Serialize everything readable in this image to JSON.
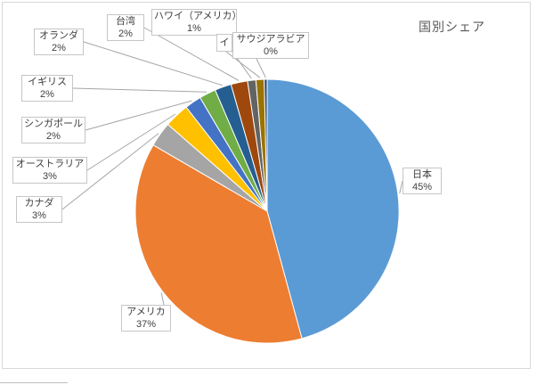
{
  "window": {
    "background": "#FFFFFF"
  },
  "chart": {
    "border_color": "#D9D9D9",
    "leader_line_color": "#A6A6A6",
    "label_border_color": "#C6C6C6",
    "label_text_color": "#404040",
    "title_color": "#595959"
  },
  "chart_data": {
    "type": "pie",
    "title": "国別シェア",
    "legend_position": "none",
    "labels_style": "callout-boxes-with-leader-lines",
    "slices": [
      {
        "label": "日本",
        "value": 45,
        "percent_label": "45%",
        "color": "#5B9BD5"
      },
      {
        "label": "アメリカ",
        "value": 37,
        "percent_label": "37%",
        "color": "#ED7D31"
      },
      {
        "label": "カナダ",
        "value": 3,
        "percent_label": "3%",
        "color": "#A5A5A5"
      },
      {
        "label": "オーストラリア",
        "value": 3,
        "percent_label": "3%",
        "color": "#FFC000"
      },
      {
        "label": "シンガポール",
        "value": 2,
        "percent_label": "2%",
        "color": "#4472C4"
      },
      {
        "label": "イギリス",
        "value": 2,
        "percent_label": "2%",
        "color": "#70AD47"
      },
      {
        "label": "オランダ",
        "value": 2,
        "percent_label": "2%",
        "color": "#255E91"
      },
      {
        "label": "台湾",
        "value": 2,
        "percent_label": "2%",
        "color": "#9E480E"
      },
      {
        "label": "ハワイ（アメリカ）",
        "value": 1,
        "percent_label": "1%",
        "color": "#636363"
      },
      {
        "label": "イ",
        "value": 1,
        "percent_label": "",
        "color": "#997300"
      },
      {
        "label": "サウジアラビア",
        "value": 0,
        "percent_label": "0%",
        "color": "#264478"
      }
    ]
  }
}
